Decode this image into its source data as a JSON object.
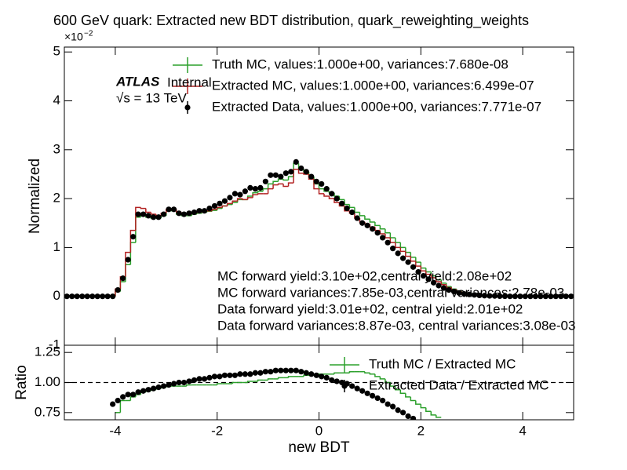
{
  "chart_data": [
    {
      "type": "histogram",
      "title": "600 GeV quark: Extracted new BDT distribution, quark_reweighting_weights",
      "y_scale_base": "×10",
      "y_scale_exp": "−2",
      "ylabel": "Normalized",
      "xlim": [
        -5,
        5
      ],
      "xticks": [
        -4,
        -2,
        0,
        2,
        4
      ],
      "ylim": [
        -1,
        5.1
      ],
      "yticks": [
        -1,
        0,
        1,
        2,
        3,
        4,
        5
      ],
      "annotations": {
        "experiment": "ATLAS",
        "status": "Internal",
        "energy": "√s = 13 TeV"
      },
      "text_block": [
        "MC forward yield:3.10e+02,central yield:2.08e+02",
        "MC forward variances:7.85e-03,central variances:2.78e-03",
        "Data forward yield:3.01e+02, central yield:2.01e+02",
        "Data forward variances:8.87e-03, central variances:3.08e-03"
      ],
      "bins": [
        -5,
        -4.9,
        -4.8,
        -4.7,
        -4.6,
        -4.5,
        -4.4,
        -4.3,
        -4.2,
        -4.1,
        -4,
        -3.9,
        -3.8,
        -3.7,
        -3.6,
        -3.5,
        -3.4,
        -3.3,
        -3.2,
        -3.1,
        -3,
        -2.9,
        -2.8,
        -2.7,
        -2.6,
        -2.5,
        -2.4,
        -2.3,
        -2.2,
        -2.1,
        -2,
        -1.9,
        -1.8,
        -1.7,
        -1.6,
        -1.5,
        -1.4,
        -1.3,
        -1.2,
        -1.1,
        -1,
        -0.9,
        -0.8,
        -0.7,
        -0.6,
        -0.5,
        -0.4,
        -0.3,
        -0.2,
        -0.1,
        0,
        0.1,
        0.2,
        0.3,
        0.4,
        0.5,
        0.6,
        0.7,
        0.8,
        0.9,
        1,
        1.1,
        1.2,
        1.3,
        1.4,
        1.5,
        1.6,
        1.7,
        1.8,
        1.9,
        2,
        2.1,
        2.2,
        2.3,
        2.4,
        2.5,
        2.6,
        2.7,
        2.8,
        2.9,
        3,
        3.1,
        3.2,
        3.3,
        3.4,
        3.5,
        3.6,
        3.7,
        3.8,
        3.9,
        4,
        4.1,
        4.2,
        4.3,
        4.4,
        4.5,
        4.6,
        4.7,
        4.8,
        4.9,
        5
      ],
      "series": [
        {
          "name": "Truth MC, values:1.000e+00, variances:7.680e-08",
          "color": "#2ca02c",
          "style": "step",
          "values": [
            0,
            0,
            0,
            0,
            0,
            0,
            0,
            0,
            0,
            0,
            0.1,
            0.3,
            0.65,
            1.1,
            1.62,
            1.65,
            1.62,
            1.6,
            1.6,
            1.65,
            1.75,
            1.75,
            1.68,
            1.65,
            1.65,
            1.68,
            1.7,
            1.72,
            1.74,
            1.76,
            1.8,
            1.85,
            1.88,
            1.92,
            1.98,
            1.98,
            2.05,
            2.12,
            2.15,
            2.2,
            2.3,
            2.35,
            2.4,
            2.38,
            2.45,
            2.72,
            2.6,
            2.55,
            2.45,
            2.3,
            2.2,
            2.15,
            2.12,
            2.05,
            1.98,
            1.88,
            1.82,
            1.72,
            1.65,
            1.58,
            1.52,
            1.45,
            1.38,
            1.3,
            1.2,
            1.1,
            1.0,
            0.9,
            0.8,
            0.7,
            0.58,
            0.5,
            0.42,
            0.34,
            0.27,
            0.2,
            0.15,
            0.11,
            0.08,
            0.06,
            0.04,
            0.03,
            0.02,
            0.015,
            0.01,
            0.008,
            0.005,
            0.003,
            0,
            0,
            0,
            0,
            0,
            0,
            0,
            0,
            0,
            0,
            0,
            0
          ]
        },
        {
          "name": "Extracted MC, values:1.000e+00, variances:6.499e-07",
          "color": "#b22222",
          "style": "step",
          "values": [
            0,
            0,
            0,
            0,
            0,
            0,
            0,
            0,
            0,
            0,
            0.15,
            0.4,
            0.9,
            1.35,
            1.82,
            1.8,
            1.72,
            1.68,
            1.65,
            1.7,
            1.78,
            1.78,
            1.72,
            1.7,
            1.68,
            1.7,
            1.72,
            1.74,
            1.75,
            1.78,
            1.82,
            1.85,
            1.9,
            1.95,
            2.0,
            1.98,
            2.02,
            2.08,
            2.1,
            2.1,
            2.2,
            2.28,
            2.3,
            2.25,
            2.32,
            2.6,
            2.52,
            2.5,
            2.4,
            2.2,
            2.1,
            2.05,
            2.0,
            1.92,
            1.85,
            1.75,
            1.7,
            1.6,
            1.52,
            1.48,
            1.42,
            1.35,
            1.28,
            1.2,
            1.1,
            1.0,
            0.92,
            0.82,
            0.72,
            0.62,
            0.52,
            0.45,
            0.38,
            0.3,
            0.24,
            0.18,
            0.14,
            0.1,
            0.07,
            0.05,
            0.04,
            0.03,
            0.02,
            0.015,
            0.01,
            0.008,
            0.005,
            0.003,
            0,
            0,
            0,
            0,
            0,
            0,
            0,
            0,
            0,
            0,
            0,
            0
          ]
        },
        {
          "name": "Extracted Data, values:1.000e+00, variances:7.771e-07",
          "color": "#000000",
          "style": "points",
          "values": [
            0,
            0,
            0,
            0,
            0,
            0,
            0,
            0,
            0,
            0,
            0.13,
            0.37,
            0.75,
            1.22,
            1.68,
            1.68,
            1.65,
            1.62,
            1.62,
            1.68,
            1.78,
            1.78,
            1.7,
            1.68,
            1.7,
            1.72,
            1.75,
            1.75,
            1.8,
            1.85,
            1.9,
            1.95,
            2.02,
            2.1,
            2.08,
            2.15,
            2.22,
            2.2,
            2.22,
            2.35,
            2.48,
            2.48,
            2.45,
            2.52,
            2.55,
            2.75,
            2.62,
            2.55,
            2.45,
            2.35,
            2.3,
            2.2,
            2.1,
            2.0,
            1.9,
            1.8,
            1.72,
            1.6,
            1.5,
            1.45,
            1.38,
            1.3,
            1.2,
            1.1,
            0.98,
            0.88,
            0.78,
            0.7,
            0.6,
            0.5,
            0.42,
            0.35,
            0.28,
            0.22,
            0.17,
            0.13,
            0.1,
            0.07,
            0.05,
            0.04,
            0.03,
            0.02,
            0.015,
            0.01,
            0.008,
            0.005,
            0.003,
            0,
            0,
            0,
            0,
            0,
            0,
            0,
            0,
            0,
            0,
            0,
            0,
            0
          ]
        }
      ]
    },
    {
      "type": "histogram",
      "ylabel": "Ratio",
      "xlabel": "new BDT",
      "xlim": [
        -5,
        5
      ],
      "xticks": [
        -4,
        -2,
        0,
        2,
        4
      ],
      "ylim": [
        0.69,
        1.31
      ],
      "yticks": [
        0.75,
        {
          "value": 1,
          "label": "1.00"
        },
        1.25
      ],
      "reference_line": 1,
      "bins": [
        -5,
        -4.9,
        -4.8,
        -4.7,
        -4.6,
        -4.5,
        -4.4,
        -4.3,
        -4.2,
        -4.1,
        -4,
        -3.9,
        -3.8,
        -3.7,
        -3.6,
        -3.5,
        -3.4,
        -3.3,
        -3.2,
        -3.1,
        -3,
        -2.9,
        -2.8,
        -2.7,
        -2.6,
        -2.5,
        -2.4,
        -2.3,
        -2.2,
        -2.1,
        -2,
        -1.9,
        -1.8,
        -1.7,
        -1.6,
        -1.5,
        -1.4,
        -1.3,
        -1.2,
        -1.1,
        -1,
        -0.9,
        -0.8,
        -0.7,
        -0.6,
        -0.5,
        -0.4,
        -0.3,
        -0.2,
        -0.1,
        0,
        0.1,
        0.2,
        0.3,
        0.4,
        0.5,
        0.6,
        0.7,
        0.8,
        0.9,
        1,
        1.1,
        1.2,
        1.3,
        1.4,
        1.5,
        1.6,
        1.7,
        1.8,
        1.9,
        2,
        2.1,
        2.2,
        2.3,
        2.4,
        2.5,
        2.6,
        2.7,
        2.8,
        2.9,
        3,
        3.1,
        3.2,
        3.3,
        3.4,
        3.5,
        3.6,
        3.7,
        3.8,
        3.9,
        4,
        4.1,
        4.2,
        4.3,
        4.4,
        4.5,
        4.6,
        4.7,
        4.8,
        4.9,
        5
      ],
      "series": [
        {
          "name": "Truth MC / Extracted MC",
          "color": "#2ca02c",
          "style": "step",
          "values": [
            null,
            null,
            null,
            null,
            null,
            null,
            null,
            null,
            null,
            null,
            0.75,
            0.85,
            0.85,
            0.88,
            0.9,
            0.92,
            0.93,
            0.94,
            0.95,
            0.96,
            0.97,
            0.97,
            0.97,
            0.97,
            0.98,
            0.98,
            0.98,
            0.98,
            0.98,
            0.98,
            0.99,
            0.99,
            0.99,
            1.0,
            1.0,
            1.0,
            1.01,
            1.01,
            1.02,
            1.02,
            1.03,
            1.03,
            1.04,
            1.04,
            1.05,
            1.05,
            1.05,
            1.06,
            1.06,
            1.06,
            1.07,
            1.07,
            1.07,
            1.08,
            1.08,
            1.08,
            1.09,
            1.09,
            1.09,
            1.08,
            1.07,
            1.05,
            1.03,
            1.0,
            0.97,
            0.94,
            0.91,
            0.88,
            0.85,
            0.82,
            0.79,
            0.76,
            0.73,
            0.71,
            null,
            null,
            null,
            null,
            null,
            null,
            null,
            null,
            null,
            null,
            null,
            null,
            null,
            null,
            null,
            null,
            null,
            null,
            null,
            null,
            null,
            null,
            null,
            null,
            null,
            null
          ]
        },
        {
          "name": "Extracted Data / Extracted MC",
          "color": "#000000",
          "style": "points",
          "values": [
            null,
            null,
            null,
            null,
            null,
            null,
            null,
            null,
            null,
            0.82,
            0.85,
            0.88,
            0.9,
            0.9,
            0.92,
            0.93,
            0.94,
            0.95,
            0.96,
            0.97,
            0.98,
            0.99,
            1.0,
            1.0,
            1.01,
            1.02,
            1.03,
            1.03,
            1.04,
            1.05,
            1.05,
            1.06,
            1.06,
            1.06,
            1.07,
            1.07,
            1.07,
            1.08,
            1.08,
            1.09,
            1.09,
            1.1,
            1.1,
            1.1,
            1.1,
            1.1,
            1.09,
            1.08,
            1.07,
            1.06,
            1.05,
            1.04,
            1.02,
            1.01,
            1.0,
            0.99,
            0.97,
            0.95,
            0.93,
            0.91,
            0.89,
            0.87,
            0.85,
            0.82,
            0.8,
            0.77,
            0.75,
            0.72,
            0.7,
            null,
            null,
            null,
            null,
            null,
            null,
            null,
            null,
            null,
            null,
            null,
            null,
            null,
            null,
            null,
            null,
            null,
            null,
            null,
            null,
            null,
            null,
            null,
            null,
            null,
            null,
            null,
            null,
            null,
            null,
            null
          ]
        }
      ]
    }
  ]
}
